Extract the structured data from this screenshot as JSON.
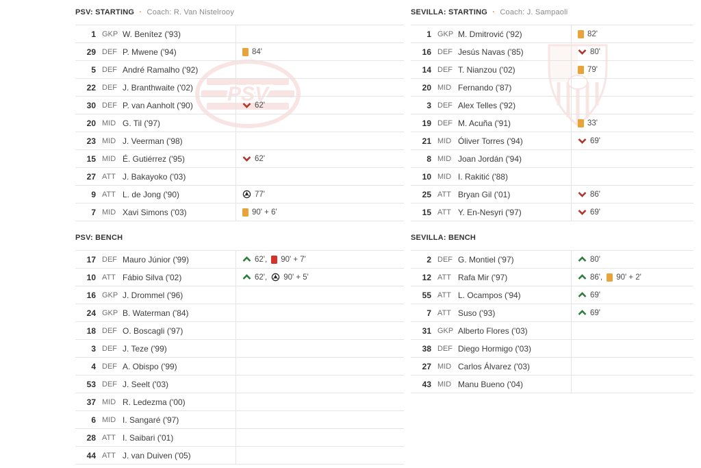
{
  "colors": {
    "yellow_card": "#E9A33B",
    "red_card": "#D2342A",
    "sub_in": "#2E7D3A",
    "sub_out": "#B73228",
    "goal": "#222222",
    "divider": "#e4e4e4",
    "accent_dot": "#cc9640"
  },
  "sections": [
    {
      "id": "psv-starting",
      "title": "PSV: STARTING",
      "separator": "·",
      "coach": "Coach: R. Van Nistelrooy",
      "players": [
        {
          "number": "1",
          "pos": "GKP",
          "name": "W. Benítez ('93)",
          "events": []
        },
        {
          "number": "29",
          "pos": "DEF",
          "name": "P. Mwene ('94)",
          "events": [
            {
              "icon": "yellow-card",
              "minute": "84'"
            }
          ]
        },
        {
          "number": "5",
          "pos": "DEF",
          "name": "André Ramalho ('92)",
          "events": []
        },
        {
          "number": "22",
          "pos": "DEF",
          "name": "J. Branthwaite ('02)",
          "events": []
        },
        {
          "number": "30",
          "pos": "DEF",
          "name": "P. van Aanholt ('90)",
          "events": [
            {
              "icon": "sub-out",
              "minute": "62'"
            }
          ]
        },
        {
          "number": "20",
          "pos": "MID",
          "name": "G. Til ('97)",
          "events": []
        },
        {
          "number": "23",
          "pos": "MID",
          "name": "J. Veerman ('98)",
          "events": []
        },
        {
          "number": "15",
          "pos": "MID",
          "name": "É. Gutiérrez ('95)",
          "events": [
            {
              "icon": "sub-out",
              "minute": "62'"
            }
          ]
        },
        {
          "number": "27",
          "pos": "ATT",
          "name": "J. Bakayoko ('03)",
          "events": []
        },
        {
          "number": "9",
          "pos": "ATT",
          "name": "L. de Jong ('90)",
          "events": [
            {
              "icon": "goal",
              "minute": "77'"
            }
          ]
        },
        {
          "number": "7",
          "pos": "MID",
          "name": "Xavi Simons ('03)",
          "events": [
            {
              "icon": "yellow-card",
              "minute": "90' + 6'"
            }
          ]
        }
      ]
    },
    {
      "id": "psv-bench",
      "title": "PSV: BENCH",
      "players": [
        {
          "number": "17",
          "pos": "DEF",
          "name": "Mauro Júnior ('99)",
          "events": [
            {
              "icon": "sub-in",
              "minute": "62'"
            },
            {
              "icon": "red-card",
              "minute": "90' + 7'"
            }
          ]
        },
        {
          "number": "10",
          "pos": "ATT",
          "name": "Fábio Silva ('02)",
          "events": [
            {
              "icon": "sub-in",
              "minute": "62'"
            },
            {
              "icon": "goal",
              "minute": "90' + 5'"
            }
          ]
        },
        {
          "number": "16",
          "pos": "GKP",
          "name": "J. Drommel ('96)",
          "events": []
        },
        {
          "number": "24",
          "pos": "GKP",
          "name": "B. Waterman ('84)",
          "events": []
        },
        {
          "number": "18",
          "pos": "DEF",
          "name": "O. Boscagli ('97)",
          "events": []
        },
        {
          "number": "3",
          "pos": "DEF",
          "name": "J. Teze ('99)",
          "events": []
        },
        {
          "number": "4",
          "pos": "DEF",
          "name": "A. Obispo ('99)",
          "events": []
        },
        {
          "number": "53",
          "pos": "DEF",
          "name": "J. Seelt ('03)",
          "events": []
        },
        {
          "number": "37",
          "pos": "MID",
          "name": "R. Ledezma ('00)",
          "events": []
        },
        {
          "number": "6",
          "pos": "MID",
          "name": "I. Sangaré ('97)",
          "events": []
        },
        {
          "number": "28",
          "pos": "ATT",
          "name": "I. Saibari ('01)",
          "events": []
        },
        {
          "number": "44",
          "pos": "ATT",
          "name": "J. van Duiven ('05)",
          "events": []
        }
      ]
    },
    {
      "id": "sevilla-starting",
      "title": "SEVILLA: STARTING",
      "separator": "·",
      "coach": "Coach: J. Sampaoli",
      "players": [
        {
          "number": "1",
          "pos": "GKP",
          "name": "M. Dmitrović ('92)",
          "events": [
            {
              "icon": "yellow-card",
              "minute": "82'"
            }
          ]
        },
        {
          "number": "16",
          "pos": "DEF",
          "name": "Jesús Navas ('85)",
          "events": [
            {
              "icon": "sub-out",
              "minute": "80'"
            }
          ]
        },
        {
          "number": "14",
          "pos": "DEF",
          "name": "T. Nianzou ('02)",
          "events": [
            {
              "icon": "yellow-card",
              "minute": "79'"
            }
          ]
        },
        {
          "number": "20",
          "pos": "MID",
          "name": "Fernando ('87)",
          "events": []
        },
        {
          "number": "3",
          "pos": "DEF",
          "name": "Alex Telles ('92)",
          "events": []
        },
        {
          "number": "19",
          "pos": "DEF",
          "name": "M. Acuña ('91)",
          "events": [
            {
              "icon": "yellow-card",
              "minute": "33'"
            }
          ]
        },
        {
          "number": "21",
          "pos": "MID",
          "name": "Óliver Torres ('94)",
          "events": [
            {
              "icon": "sub-out",
              "minute": "69'"
            }
          ]
        },
        {
          "number": "8",
          "pos": "MID",
          "name": "Joan Jordán ('94)",
          "events": []
        },
        {
          "number": "10",
          "pos": "MID",
          "name": "I. Rakitić ('88)",
          "events": []
        },
        {
          "number": "25",
          "pos": "ATT",
          "name": "Bryan Gil ('01)",
          "events": [
            {
              "icon": "sub-out",
              "minute": "86'"
            }
          ]
        },
        {
          "number": "15",
          "pos": "ATT",
          "name": "Y. En-Nesyri ('97)",
          "events": [
            {
              "icon": "sub-out",
              "minute": "69'"
            }
          ]
        }
      ]
    },
    {
      "id": "sevilla-bench",
      "title": "SEVILLA: BENCH",
      "players": [
        {
          "number": "2",
          "pos": "DEF",
          "name": "G. Montiel ('97)",
          "events": [
            {
              "icon": "sub-in",
              "minute": "80'"
            }
          ]
        },
        {
          "number": "12",
          "pos": "ATT",
          "name": "Rafa Mir ('97)",
          "events": [
            {
              "icon": "sub-in",
              "minute": "86'"
            },
            {
              "icon": "yellow-card",
              "minute": "90' + 2'"
            }
          ]
        },
        {
          "number": "55",
          "pos": "ATT",
          "name": "L. Ocampos ('94)",
          "events": [
            {
              "icon": "sub-in",
              "minute": "69'"
            }
          ]
        },
        {
          "number": "7",
          "pos": "ATT",
          "name": "Suso ('93)",
          "events": [
            {
              "icon": "sub-in",
              "minute": "69'"
            }
          ]
        },
        {
          "number": "31",
          "pos": "GKP",
          "name": "Alberto Flores ('03)",
          "events": []
        },
        {
          "number": "38",
          "pos": "DEF",
          "name": "Diego Hormigo ('03)",
          "events": []
        },
        {
          "number": "27",
          "pos": "MID",
          "name": "Carlos Álvarez ('03)",
          "events": []
        },
        {
          "number": "43",
          "pos": "MID",
          "name": "Manu Bueno ('04)",
          "events": []
        }
      ]
    }
  ]
}
